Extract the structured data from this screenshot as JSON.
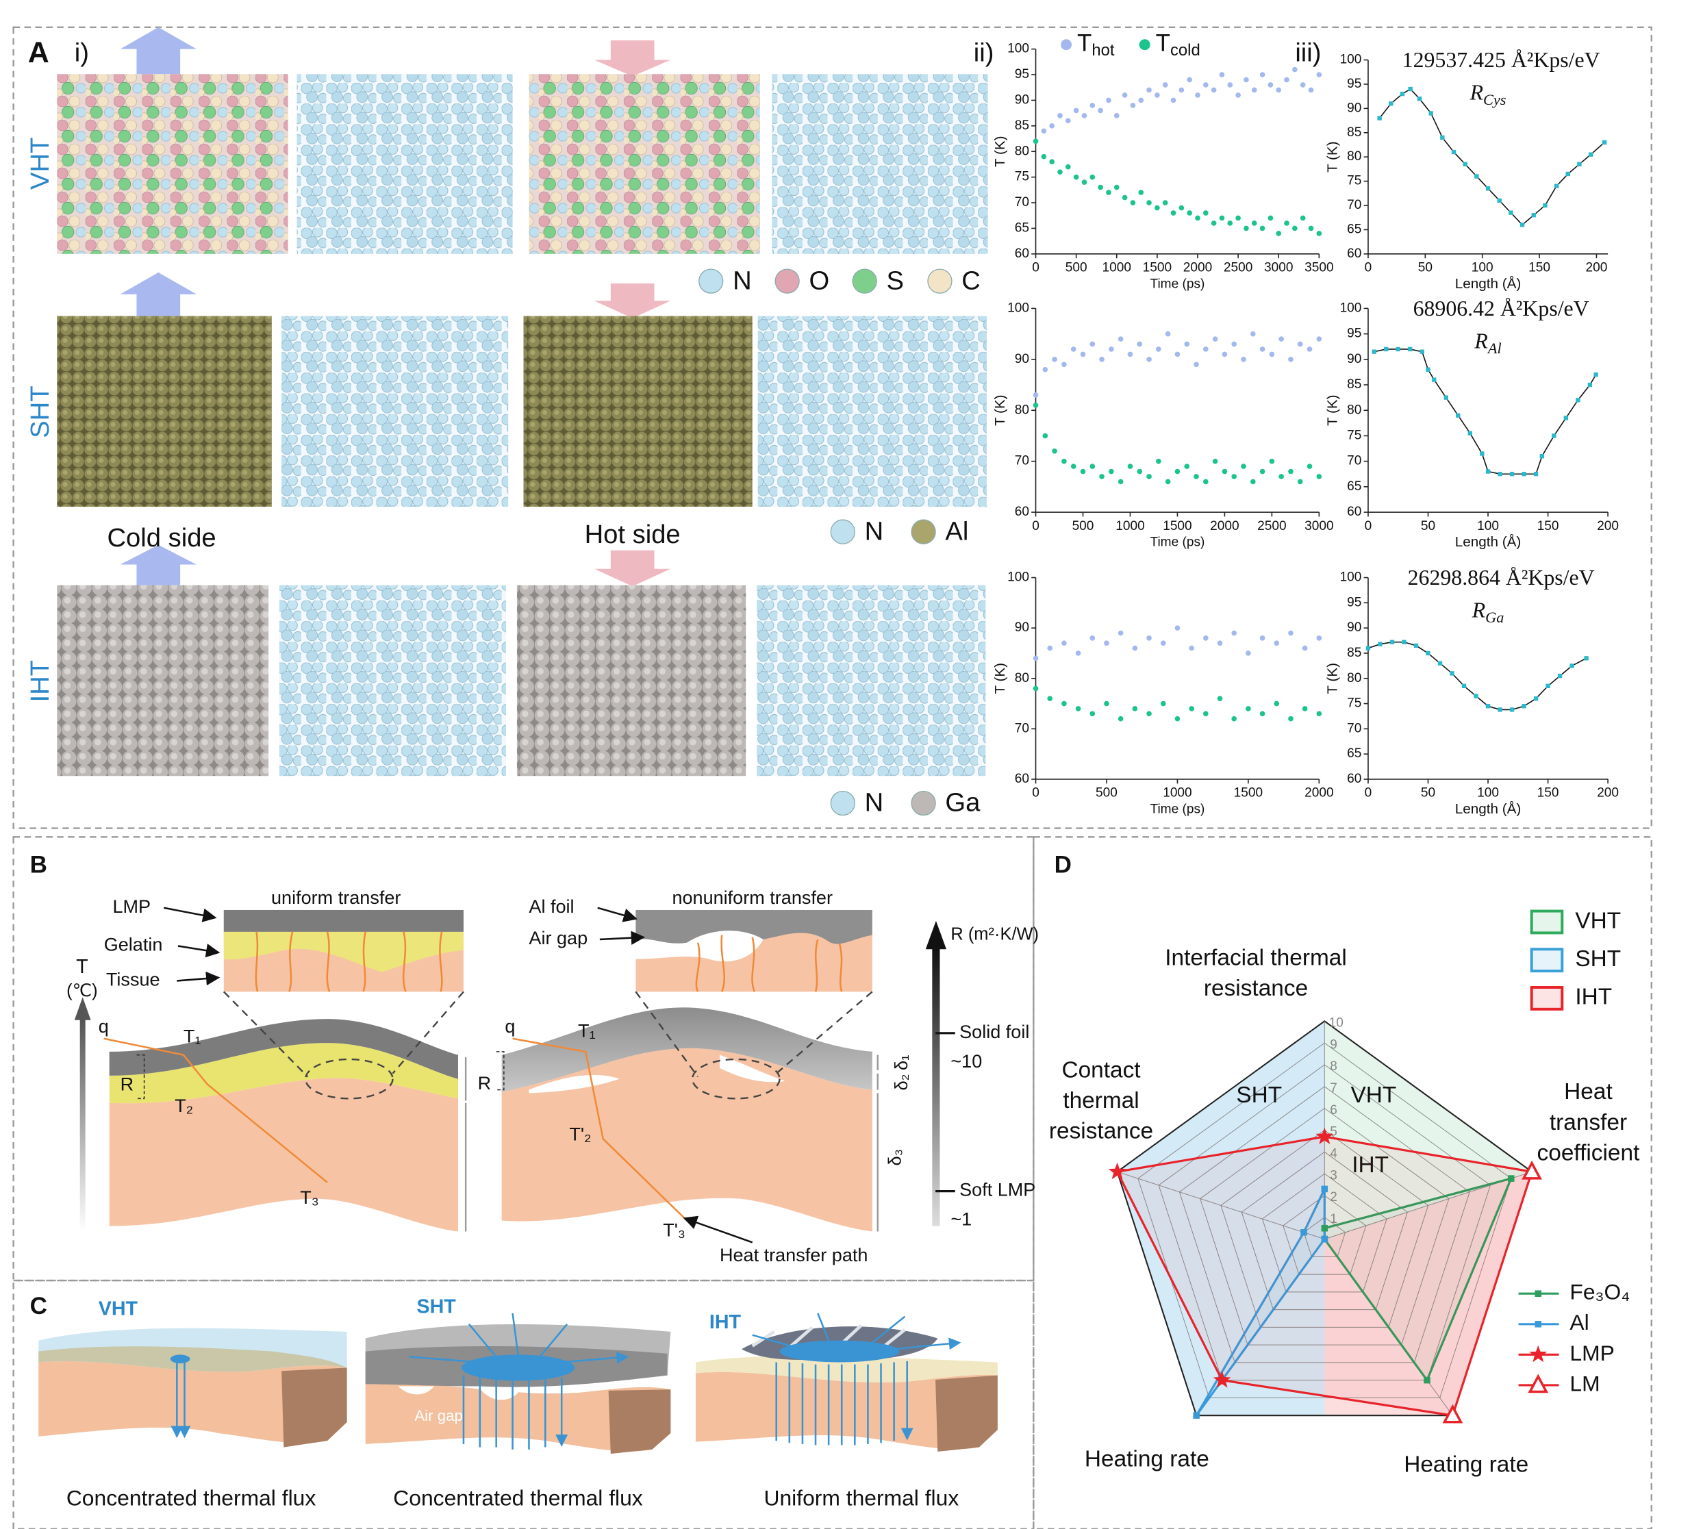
{
  "panel_a": {
    "label": "A",
    "sub_i": "i)",
    "sub_ii": "ii)",
    "sub_iii": "iii)",
    "rows": [
      {
        "name": "VHT",
        "legend": [
          {
            "name": "N",
            "color": "#bfe0ef"
          },
          {
            "name": "O",
            "color": "#e0a6b2"
          },
          {
            "name": "S",
            "color": "#7fcf8c"
          },
          {
            "name": "C",
            "color": "#f3e4c8"
          }
        ]
      },
      {
        "name": "SHT",
        "legend": [
          {
            "name": "N",
            "color": "#bfe0ef"
          },
          {
            "name": "Al",
            "color": "#a9a56c"
          }
        ]
      },
      {
        "name": "IHT",
        "legend": [
          {
            "name": "N",
            "color": "#bfe0ef"
          },
          {
            "name": "Ga",
            "color": "#bdb8b5"
          }
        ]
      }
    ],
    "cold_side": "Cold side",
    "hot_side": "Hot side"
  },
  "chart_data": [
    {
      "type": "scatter",
      "xlabel": "Time (ps)",
      "ylabel": "T (K)",
      "x": [
        0,
        100,
        200,
        300,
        400,
        500,
        600,
        700,
        800,
        900,
        1000,
        1100,
        1200,
        1300,
        1400,
        1500,
        1600,
        1700,
        1800,
        1900,
        2000,
        2100,
        2200,
        2300,
        2400,
        2500,
        2600,
        2700,
        2800,
        2900,
        3000,
        3100,
        3200,
        3300,
        3400,
        3500
      ],
      "xlim": [
        0,
        3500
      ],
      "xticks": [
        0,
        500,
        1000,
        1500,
        2000,
        2500,
        3000,
        3500
      ],
      "ylim": [
        60,
        100
      ],
      "yticks": [
        60,
        65,
        70,
        75,
        80,
        85,
        90,
        95,
        100
      ],
      "series": [
        {
          "name": "T",
          "subscript": "hot",
          "color": "#a3b9ee",
          "values": [
            82,
            84,
            85,
            87,
            86,
            88,
            87,
            89,
            88,
            90,
            87,
            91,
            89,
            90,
            92,
            91,
            93,
            90,
            92,
            94,
            91,
            93,
            92,
            95,
            93,
            91,
            94,
            92,
            95,
            93,
            92,
            94,
            96,
            93,
            92,
            95
          ]
        },
        {
          "name": "T",
          "subscript": "cold",
          "color": "#1bc48a",
          "values": [
            82,
            79,
            78,
            76,
            77,
            75,
            74,
            75,
            73,
            72,
            73,
            71,
            70,
            72,
            70,
            69,
            70,
            68,
            69,
            68,
            67,
            68,
            66,
            67,
            66,
            67,
            65,
            66,
            65,
            67,
            64,
            66,
            65,
            67,
            65,
            64
          ]
        }
      ]
    },
    {
      "type": "scatter",
      "xlabel": "Time (ps)",
      "ylabel": "T (K)",
      "x": [
        0,
        100,
        200,
        300,
        400,
        500,
        600,
        700,
        800,
        900,
        1000,
        1100,
        1200,
        1300,
        1400,
        1500,
        1600,
        1700,
        1800,
        1900,
        2000,
        2100,
        2200,
        2300,
        2400,
        2500,
        2600,
        2700,
        2800,
        2900,
        3000
      ],
      "xlim": [
        0,
        3000
      ],
      "xticks": [
        0,
        500,
        1000,
        1500,
        2000,
        2500,
        3000
      ],
      "ylim": [
        60,
        100
      ],
      "yticks": [
        60,
        70,
        80,
        90,
        100
      ],
      "series": [
        {
          "color": "#a3b9ee",
          "values": [
            83,
            88,
            90,
            89,
            92,
            91,
            93,
            90,
            92,
            94,
            91,
            93,
            90,
            92,
            95,
            91,
            93,
            89,
            92,
            94,
            91,
            93,
            90,
            95,
            92,
            91,
            94,
            90,
            93,
            92,
            94
          ]
        },
        {
          "color": "#1bc48a",
          "values": [
            81,
            75,
            72,
            70,
            69,
            68,
            69,
            67,
            68,
            66,
            69,
            68,
            67,
            70,
            66,
            68,
            69,
            67,
            66,
            70,
            68,
            67,
            69,
            66,
            68,
            70,
            67,
            68,
            66,
            69,
            67
          ]
        }
      ]
    },
    {
      "type": "scatter",
      "xlabel": "Time (ps)",
      "ylabel": "T (K)",
      "x": [
        0,
        100,
        200,
        300,
        400,
        500,
        600,
        700,
        800,
        900,
        1000,
        1100,
        1200,
        1300,
        1400,
        1500,
        1600,
        1700,
        1800,
        1900,
        2000
      ],
      "xlim": [
        0,
        2000
      ],
      "xticks": [
        0,
        500,
        1000,
        1500,
        2000
      ],
      "ylim": [
        60,
        100
      ],
      "yticks": [
        60,
        70,
        80,
        90,
        100
      ],
      "series": [
        {
          "color": "#a3b9ee",
          "values": [
            84,
            86,
            87,
            85,
            88,
            87,
            89,
            86,
            88,
            87,
            90,
            86,
            88,
            87,
            89,
            85,
            88,
            87,
            89,
            86,
            88
          ]
        },
        {
          "color": "#1bc48a",
          "values": [
            78,
            76,
            75,
            74,
            73,
            75,
            72,
            74,
            73,
            75,
            72,
            74,
            73,
            76,
            72,
            74,
            73,
            75,
            72,
            74,
            73
          ]
        }
      ]
    },
    {
      "type": "line",
      "title": "129537.425 Å²Kps/eV",
      "label": {
        "symbol": "R",
        "sub": "Cys"
      },
      "xlabel": "Length (Å)",
      "ylabel": "T (K)",
      "x": [
        10,
        20,
        30,
        37,
        45,
        55,
        65,
        75,
        85,
        95,
        105,
        115,
        125,
        135,
        145,
        155,
        165,
        175,
        185,
        195,
        207
      ],
      "xlim": [
        0,
        210
      ],
      "xticks": [
        0,
        50,
        100,
        150,
        200
      ],
      "ylim": [
        60,
        100
      ],
      "yticks": [
        60,
        65,
        70,
        75,
        80,
        85,
        90,
        95,
        100
      ],
      "series": [
        {
          "color": "#2bb8c9",
          "values": [
            88,
            91,
            93,
            94,
            92,
            89,
            84,
            81,
            78.5,
            76,
            73.5,
            71,
            68.5,
            66,
            68,
            70,
            74,
            76.5,
            78.5,
            80.5,
            83
          ]
        }
      ]
    },
    {
      "type": "line",
      "title": "68906.42 Å²Kps/eV",
      "label": {
        "symbol": "R",
        "sub": "Al"
      },
      "xlabel": "Length (Å)",
      "ylabel": "T (K)",
      "x": [
        5,
        15,
        25,
        35,
        45,
        50,
        55,
        65,
        75,
        85,
        95,
        100,
        110,
        120,
        130,
        140,
        145,
        155,
        165,
        175,
        185,
        190
      ],
      "xlim": [
        0,
        200
      ],
      "xticks": [
        0,
        50,
        100,
        150,
        200
      ],
      "ylim": [
        60,
        100
      ],
      "yticks": [
        60,
        65,
        70,
        75,
        80,
        85,
        90,
        95,
        100
      ],
      "series": [
        {
          "color": "#2bb8c9",
          "values": [
            91.5,
            92,
            92,
            92,
            91.5,
            88,
            86,
            82.5,
            79,
            75.5,
            71.5,
            68,
            67.5,
            67.5,
            67.5,
            67.5,
            71,
            75,
            78.5,
            82,
            85,
            87
          ]
        }
      ]
    },
    {
      "type": "line",
      "title": "26298.864 Å²Kps/eV",
      "label": {
        "symbol": "R",
        "sub": "Ga"
      },
      "xlabel": "Length (Å)",
      "ylabel": "T (K)",
      "x": [
        0,
        10,
        20,
        30,
        40,
        50,
        60,
        70,
        80,
        90,
        100,
        110,
        120,
        130,
        140,
        150,
        160,
        170,
        182
      ],
      "xlim": [
        0,
        200
      ],
      "xticks": [
        0,
        50,
        100,
        150,
        200
      ],
      "ylim": [
        60,
        100
      ],
      "yticks": [
        60,
        65,
        70,
        75,
        80,
        85,
        90,
        95,
        100
      ],
      "series": [
        {
          "color": "#2bb8c9",
          "values": [
            86,
            86.8,
            87.2,
            87.2,
            86.5,
            85,
            83,
            81,
            78.5,
            76.5,
            74.5,
            73.8,
            73.8,
            74.5,
            76,
            78.5,
            80.5,
            82.5,
            84
          ]
        }
      ]
    },
    {
      "type": "radar",
      "axes": [
        {
          "lines": [
            "Interfacial thermal",
            "resistance"
          ]
        },
        {
          "lines": [
            "Heat",
            "transfer",
            "coefficient"
          ]
        },
        {
          "lines": [
            "Heating rate"
          ]
        },
        {
          "lines": [
            "Heating rate"
          ]
        },
        {
          "lines": [
            "Contact",
            "thermal",
            "resistance"
          ]
        }
      ],
      "rlim": [
        0,
        10
      ],
      "rticks": [
        1,
        2,
        3,
        4,
        5,
        6,
        7,
        8,
        9,
        10
      ],
      "regions": [
        {
          "name": "VHT",
          "color": "#2eaa5c"
        },
        {
          "name": "SHT",
          "color": "#3aa0d8"
        },
        {
          "name": "IHT",
          "color": "#e8232a"
        }
      ],
      "series": [
        {
          "name": "Fe₃O₄",
          "color": "#2e9e5e",
          "marker": "square",
          "values": [
            0.5,
            9,
            8,
            0,
            0
          ]
        },
        {
          "name": "Al",
          "color": "#3a9ad9",
          "marker": "square",
          "values": [
            2.3,
            0,
            0,
            10,
            1
          ]
        },
        {
          "name": "LMP",
          "color": "#e8232a",
          "marker": "star",
          "values": [
            4.7,
            null,
            null,
            8,
            10
          ]
        },
        {
          "name": "LM",
          "color": "#e8232a",
          "marker": "triangle",
          "values": [
            null,
            10,
            10,
            null,
            null
          ]
        }
      ]
    }
  ],
  "panel_b": {
    "label": "B",
    "left": {
      "inset_title": "uniform transfer",
      "layers": [
        "LMP",
        "Gelatin",
        "Tissue"
      ],
      "axis": {
        "symbol": "T",
        "unit": "(℃)"
      },
      "q": "q",
      "points": [
        "T₁",
        "T₂",
        "T₃"
      ],
      "r": "R"
    },
    "right": {
      "inset_title": "nonuniform transfer",
      "layers": [
        "Al foil",
        "Air gap"
      ],
      "q": "q",
      "points": [
        "T₁",
        "T'₂",
        "T'₃"
      ],
      "path": "Heat transfer path",
      "r": "R",
      "thicknesses": [
        "δ₁",
        "δ₂",
        "δ₃"
      ],
      "axis": "R (m²·K/W)",
      "levels": [
        {
          "name": "Solid foil",
          "value": "~10"
        },
        {
          "name": "Soft LMP",
          "value": "~1"
        }
      ]
    }
  },
  "panel_c": {
    "label": "C",
    "items": [
      {
        "name": "VHT",
        "caption": "Concentrated thermal flux"
      },
      {
        "name": "SHT",
        "caption": "Concentrated thermal flux",
        "note": "Air gap"
      },
      {
        "name": "IHT",
        "caption": "Uniform thermal flux"
      }
    ]
  },
  "panel_d": {
    "label": "D"
  }
}
